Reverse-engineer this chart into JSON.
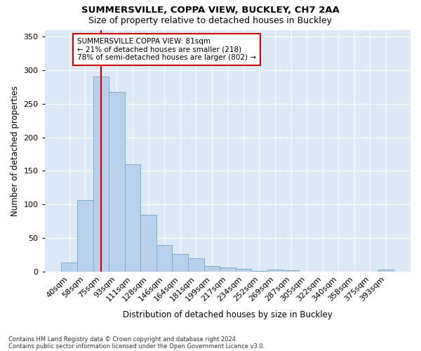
{
  "title1": "SUMMERSVILLE, COPPA VIEW, BUCKLEY, CH7 2AA",
  "title2": "Size of property relative to detached houses in Buckley",
  "xlabel": "Distribution of detached houses by size in Buckley",
  "ylabel": "Number of detached properties",
  "categories": [
    "40sqm",
    "58sqm",
    "75sqm",
    "93sqm",
    "111sqm",
    "128sqm",
    "146sqm",
    "164sqm",
    "181sqm",
    "199sqm",
    "217sqm",
    "234sqm",
    "252sqm",
    "269sqm",
    "287sqm",
    "305sqm",
    "322sqm",
    "340sqm",
    "358sqm",
    "375sqm",
    "393sqm"
  ],
  "values": [
    14,
    107,
    291,
    268,
    160,
    85,
    40,
    26,
    20,
    8,
    6,
    4,
    1,
    3,
    2,
    0,
    0,
    0,
    0,
    0,
    3
  ],
  "bar_color": "#b8d0ea",
  "bar_edge_color": "#7aadd4",
  "background_color": "#dce8f5",
  "grid_color": "#ffffff",
  "vline_x_index": 2,
  "vline_color": "#cc0000",
  "annotation_title": "SUMMERSVILLE COPPA VIEW: 81sqm",
  "annotation_line1": "← 21% of detached houses are smaller (218)",
  "annotation_line2": "78% of semi-detached houses are larger (802) →",
  "footnote1": "Contains HM Land Registry data © Crown copyright and database right 2024.",
  "footnote2": "Contains public sector information licensed under the Open Government Licence v3.0.",
  "ylim": [
    0,
    360
  ],
  "yticks": [
    0,
    50,
    100,
    150,
    200,
    250,
    300,
    350
  ]
}
